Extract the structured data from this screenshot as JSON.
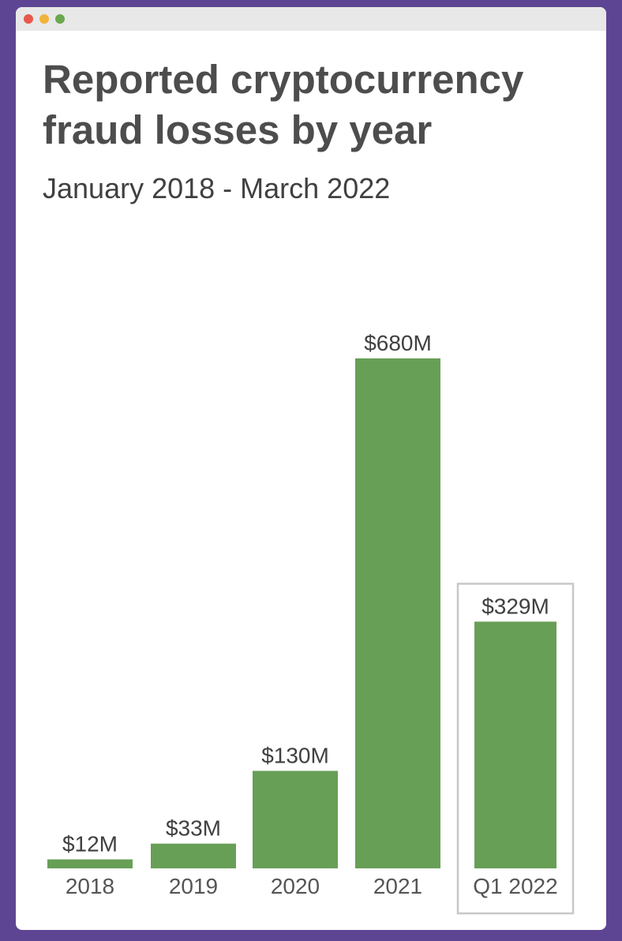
{
  "window": {
    "controls": [
      {
        "name": "close-dot",
        "color": "#e8584c"
      },
      {
        "name": "minimize-dot",
        "color": "#f1b43a"
      },
      {
        "name": "maximize-dot",
        "color": "#6aa84f"
      }
    ]
  },
  "chart_data": {
    "type": "bar",
    "title": "Reported cryptocurrency fraud losses by year",
    "subtitle": "January 2018 - March 2022",
    "categories": [
      "2018",
      "2019",
      "2020",
      "2021",
      "Q1 2022"
    ],
    "values": [
      12,
      33,
      130,
      680,
      329
    ],
    "value_labels": [
      "$12M",
      "$33M",
      "$130M",
      "$680M",
      "$329M"
    ],
    "unit": "$M",
    "ylim": [
      0,
      680
    ],
    "highlighted_category": "Q1 2022",
    "xlabel": "",
    "ylabel": "",
    "grid": false,
    "colors": {
      "bar": "#689f57",
      "value_text": "#404040",
      "tick_text": "#555555",
      "highlight_border": "#c8c8c8"
    }
  }
}
